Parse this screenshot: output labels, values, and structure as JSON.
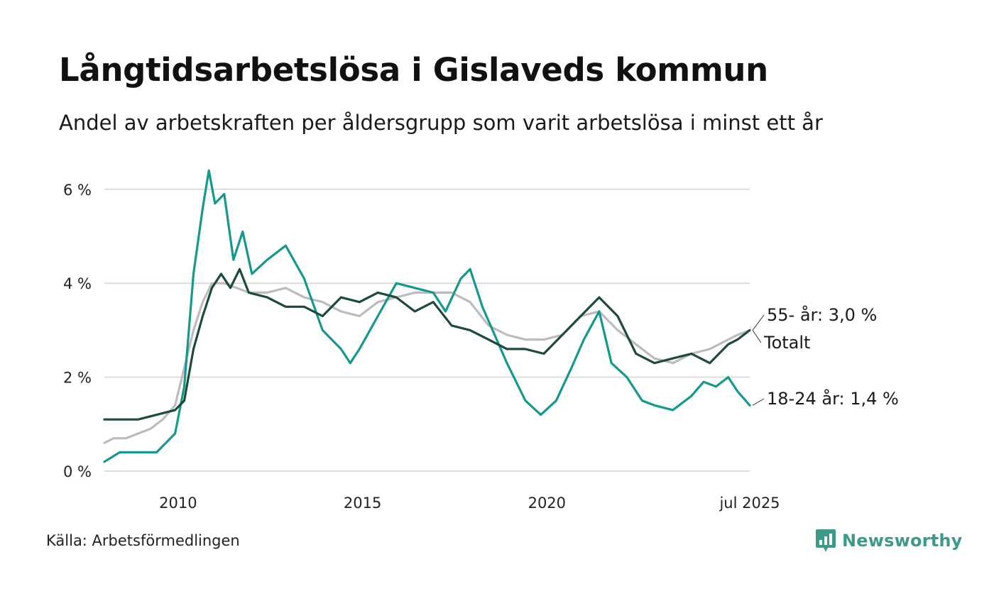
{
  "title": "Långtidsarbetslösa i Gislaveds kommun",
  "subtitle": "Andel av arbetskraften per åldersgrupp som varit arbetslösa i minst ett år",
  "source": "Källa: Arbetsförmedlingen",
  "brand": {
    "name": "Newsworthy",
    "icon": "newsworthy-logo-icon",
    "color": "#3c9a8a"
  },
  "colors": {
    "totalt": "#1e4a3c",
    "age_18_24": "#16998a",
    "age_55": "#bdbac3",
    "grid": "#dcdcdc"
  },
  "chart_data": {
    "type": "line",
    "title": "Långtidsarbetslösa i Gislaveds kommun",
    "subtitle": "Andel av arbetskraften per åldersgrupp som varit arbetslösa i minst ett år",
    "xlabel": "",
    "ylabel": "",
    "ylim": [
      0,
      6.6
    ],
    "xlim": [
      "2008-01",
      "2025-07"
    ],
    "grid": true,
    "y_ticks": [
      0,
      2,
      4,
      6
    ],
    "y_tick_labels": [
      "0 %",
      "2 %",
      "4 %",
      "6 %"
    ],
    "x_ticks": [
      "2010-01",
      "2015-01",
      "2020-01",
      "2025-07"
    ],
    "x_tick_labels": [
      "2010",
      "2015",
      "2020",
      "jul 2025"
    ],
    "legend": "direct labels at right end of lines",
    "series": [
      {
        "name": "55- år",
        "end_label": "55- år: 3,0 %",
        "color": "#bdbac3",
        "points": [
          [
            "2008-01",
            0.6
          ],
          [
            "2008-04",
            0.7
          ],
          [
            "2008-08",
            0.7
          ],
          [
            "2008-12",
            0.8
          ],
          [
            "2009-04",
            0.9
          ],
          [
            "2009-08",
            1.1
          ],
          [
            "2009-12",
            1.4
          ],
          [
            "2010-03",
            2.2
          ],
          [
            "2010-06",
            3.0
          ],
          [
            "2010-09",
            3.6
          ],
          [
            "2010-12",
            4.0
          ],
          [
            "2011-04",
            4.0
          ],
          [
            "2011-08",
            3.9
          ],
          [
            "2011-12",
            3.8
          ],
          [
            "2012-06",
            3.8
          ],
          [
            "2012-12",
            3.9
          ],
          [
            "2013-06",
            3.7
          ],
          [
            "2013-12",
            3.6
          ],
          [
            "2014-06",
            3.4
          ],
          [
            "2014-12",
            3.3
          ],
          [
            "2015-06",
            3.6
          ],
          [
            "2015-12",
            3.7
          ],
          [
            "2016-06",
            3.8
          ],
          [
            "2016-12",
            3.8
          ],
          [
            "2017-06",
            3.8
          ],
          [
            "2017-12",
            3.6
          ],
          [
            "2018-06",
            3.1
          ],
          [
            "2018-12",
            2.9
          ],
          [
            "2019-06",
            2.8
          ],
          [
            "2019-12",
            2.8
          ],
          [
            "2020-06",
            2.9
          ],
          [
            "2020-12",
            3.3
          ],
          [
            "2021-06",
            3.4
          ],
          [
            "2021-12",
            3.0
          ],
          [
            "2022-06",
            2.7
          ],
          [
            "2022-12",
            2.4
          ],
          [
            "2023-06",
            2.3
          ],
          [
            "2023-12",
            2.5
          ],
          [
            "2024-06",
            2.6
          ],
          [
            "2024-12",
            2.8
          ],
          [
            "2025-03",
            2.9
          ],
          [
            "2025-07",
            3.0
          ]
        ]
      },
      {
        "name": "18-24 år",
        "end_label": "18-24 år: 1,4 %",
        "color": "#16998a",
        "points": [
          [
            "2008-01",
            0.2
          ],
          [
            "2008-06",
            0.4
          ],
          [
            "2008-12",
            0.4
          ],
          [
            "2009-06",
            0.4
          ],
          [
            "2009-12",
            0.8
          ],
          [
            "2010-03",
            1.8
          ],
          [
            "2010-06",
            4.2
          ],
          [
            "2010-09",
            5.6
          ],
          [
            "2010-11",
            6.4
          ],
          [
            "2011-01",
            5.7
          ],
          [
            "2011-04",
            5.9
          ],
          [
            "2011-07",
            4.5
          ],
          [
            "2011-10",
            5.1
          ],
          [
            "2012-01",
            4.2
          ],
          [
            "2012-06",
            4.5
          ],
          [
            "2012-12",
            4.8
          ],
          [
            "2013-06",
            4.1
          ],
          [
            "2013-12",
            3.0
          ],
          [
            "2014-06",
            2.6
          ],
          [
            "2014-09",
            2.3
          ],
          [
            "2014-12",
            2.6
          ],
          [
            "2015-06",
            3.3
          ],
          [
            "2015-12",
            4.0
          ],
          [
            "2016-06",
            3.9
          ],
          [
            "2016-12",
            3.8
          ],
          [
            "2017-04",
            3.4
          ],
          [
            "2017-09",
            4.1
          ],
          [
            "2017-12",
            4.3
          ],
          [
            "2018-04",
            3.5
          ],
          [
            "2018-08",
            2.9
          ],
          [
            "2018-12",
            2.3
          ],
          [
            "2019-06",
            1.5
          ],
          [
            "2019-11",
            1.2
          ],
          [
            "2020-04",
            1.5
          ],
          [
            "2020-09",
            2.2
          ],
          [
            "2021-01",
            2.8
          ],
          [
            "2021-06",
            3.4
          ],
          [
            "2021-10",
            2.3
          ],
          [
            "2022-03",
            2.0
          ],
          [
            "2022-08",
            1.5
          ],
          [
            "2022-12",
            1.4
          ],
          [
            "2023-06",
            1.3
          ],
          [
            "2023-12",
            1.6
          ],
          [
            "2024-04",
            1.9
          ],
          [
            "2024-08",
            1.8
          ],
          [
            "2024-12",
            2.0
          ],
          [
            "2025-03",
            1.7
          ],
          [
            "2025-07",
            1.4
          ]
        ]
      },
      {
        "name": "Totalt",
        "end_label": "Totalt",
        "color": "#1e4a3c",
        "points": [
          [
            "2008-01",
            1.1
          ],
          [
            "2008-06",
            1.1
          ],
          [
            "2008-12",
            1.1
          ],
          [
            "2009-06",
            1.2
          ],
          [
            "2009-12",
            1.3
          ],
          [
            "2010-03",
            1.5
          ],
          [
            "2010-06",
            2.6
          ],
          [
            "2010-09",
            3.3
          ],
          [
            "2010-12",
            3.9
          ],
          [
            "2011-03",
            4.2
          ],
          [
            "2011-06",
            3.9
          ],
          [
            "2011-09",
            4.3
          ],
          [
            "2011-12",
            3.8
          ],
          [
            "2012-06",
            3.7
          ],
          [
            "2012-12",
            3.5
          ],
          [
            "2013-06",
            3.5
          ],
          [
            "2013-12",
            3.3
          ],
          [
            "2014-06",
            3.7
          ],
          [
            "2014-12",
            3.6
          ],
          [
            "2015-06",
            3.8
          ],
          [
            "2015-12",
            3.7
          ],
          [
            "2016-06",
            3.4
          ],
          [
            "2016-12",
            3.6
          ],
          [
            "2017-06",
            3.1
          ],
          [
            "2017-12",
            3.0
          ],
          [
            "2018-06",
            2.8
          ],
          [
            "2018-12",
            2.6
          ],
          [
            "2019-06",
            2.6
          ],
          [
            "2019-12",
            2.5
          ],
          [
            "2020-06",
            2.9
          ],
          [
            "2020-12",
            3.3
          ],
          [
            "2021-06",
            3.7
          ],
          [
            "2021-12",
            3.3
          ],
          [
            "2022-06",
            2.5
          ],
          [
            "2022-12",
            2.3
          ],
          [
            "2023-06",
            2.4
          ],
          [
            "2023-12",
            2.5
          ],
          [
            "2024-06",
            2.3
          ],
          [
            "2024-12",
            2.7
          ],
          [
            "2025-03",
            2.8
          ],
          [
            "2025-07",
            3.0
          ]
        ]
      }
    ]
  }
}
